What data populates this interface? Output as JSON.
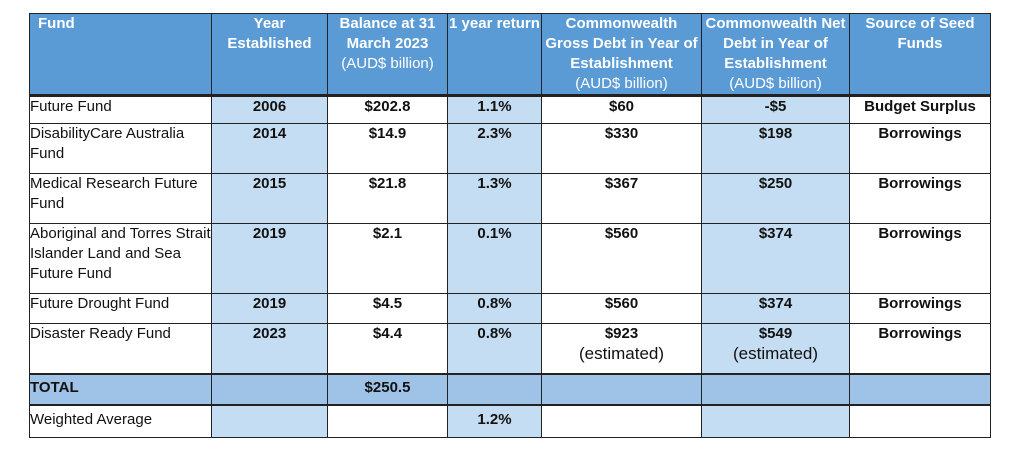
{
  "headers": {
    "fund": "Fund",
    "year": "Year Established",
    "balance": "Balance at 31 March 2023",
    "balance_unit": "(AUD$ billion)",
    "return": "1 year return",
    "gross": "Commonwealth Gross Debt in Year of Establishment",
    "gross_unit": "(AUD$ billion)",
    "net": "Commonwealth Net Debt in Year of Establishment",
    "net_unit": "(AUD$ billion)",
    "source": "Source of Seed Funds"
  },
  "rows": [
    {
      "fund": "Future Fund",
      "year": "2006",
      "balance": "$202.8",
      "return": "1.1%",
      "gross": "$60",
      "gross_note": "",
      "net": "-$5",
      "net_note": "",
      "source": "Budget Surplus"
    },
    {
      "fund": "DisabilityCare Australia Fund",
      "year": "2014",
      "balance": "$14.9",
      "return": "2.3%",
      "gross": "$330",
      "gross_note": "",
      "net": "$198",
      "net_note": "",
      "source": "Borrowings"
    },
    {
      "fund": "Medical Research Future Fund",
      "year": "2015",
      "balance": "$21.8",
      "return": "1.3%",
      "gross": "$367",
      "gross_note": "",
      "net": "$250",
      "net_note": "",
      "source": "Borrowings"
    },
    {
      "fund": "Aboriginal and Torres Strait Islander Land and Sea Future Fund",
      "year": "2019",
      "balance": "$2.1",
      "return": "0.1%",
      "gross": "$560",
      "gross_note": "",
      "net": "$374",
      "net_note": "",
      "source": "Borrowings"
    },
    {
      "fund": "Future Drought Fund",
      "year": "2019",
      "balance": "$4.5",
      "return": "0.8%",
      "gross": "$560",
      "gross_note": "",
      "net": "$374",
      "net_note": "",
      "source": "Borrowings"
    },
    {
      "fund": "Disaster Ready Fund",
      "year": "2023",
      "balance": "$4.4",
      "return": "0.8%",
      "gross": "$923",
      "gross_note": "(estimated)",
      "net": "$549",
      "net_note": "(estimated)",
      "source": "Borrowings"
    }
  ],
  "total": {
    "label": "TOTAL",
    "balance": "$250.5"
  },
  "weighted": {
    "label": "Weighted Average",
    "return": "1.2%"
  },
  "colors": {
    "header": "#5b9bd5",
    "shade": "#c5ddf2",
    "total": "#9ec3e6"
  }
}
